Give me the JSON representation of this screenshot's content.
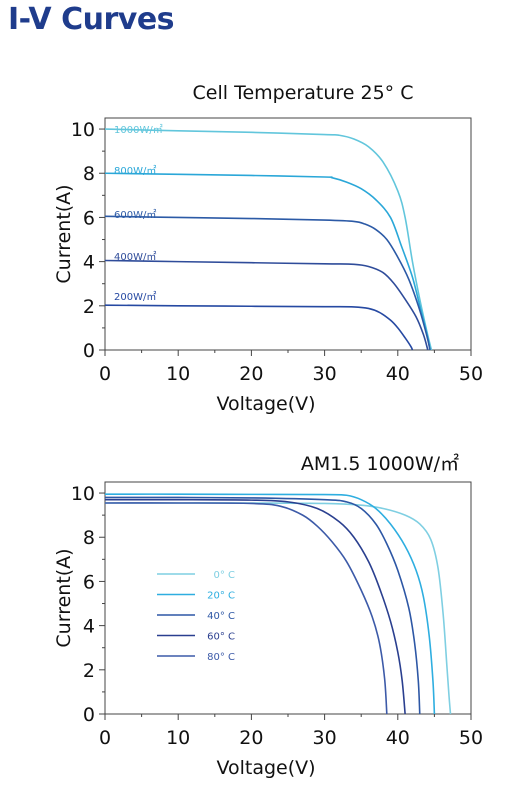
{
  "page": {
    "title": "I-V Curves"
  },
  "chart_data": [
    {
      "type": "line",
      "title": "Cell Temperature 25° C",
      "xlabel": "Voltage(V)",
      "ylabel": "Current(A)",
      "xlim": [
        0,
        50
      ],
      "ylim": [
        0,
        10.5
      ],
      "xticks": [
        0,
        10,
        20,
        30,
        40,
        50
      ],
      "yticks": [
        0,
        2,
        4,
        6,
        8,
        10
      ],
      "grid": false,
      "legend": "inline-labels",
      "series": [
        {
          "name": "1000W/㎡",
          "color": "#62c6dc",
          "points": [
            [
              0,
              10.0
            ],
            [
              10,
              9.92
            ],
            [
              20,
              9.85
            ],
            [
              30,
              9.75
            ],
            [
              32,
              9.72
            ],
            [
              34,
              9.55
            ],
            [
              36,
              9.2
            ],
            [
              38,
              8.5
            ],
            [
              40,
              7.2
            ],
            [
              41,
              6.0
            ],
            [
              42,
              4.0
            ],
            [
              43,
              2.3
            ],
            [
              44,
              0.8
            ],
            [
              44.6,
              0
            ]
          ]
        },
        {
          "name": "800W/㎡",
          "color": "#2aa7d8",
          "points": [
            [
              0,
              8.0
            ],
            [
              10,
              7.95
            ],
            [
              20,
              7.9
            ],
            [
              30,
              7.83
            ],
            [
              31,
              7.8
            ],
            [
              33,
              7.6
            ],
            [
              35,
              7.3
            ],
            [
              37,
              6.8
            ],
            [
              39,
              6.0
            ],
            [
              40.5,
              4.7
            ],
            [
              42,
              3.3
            ],
            [
              43,
              2.0
            ],
            [
              44,
              0.7
            ],
            [
              44.4,
              0
            ]
          ]
        },
        {
          "name": "600W/㎡",
          "color": "#2c5aa6",
          "points": [
            [
              0,
              6.05
            ],
            [
              10,
              6.0
            ],
            [
              20,
              5.95
            ],
            [
              30,
              5.88
            ],
            [
              34,
              5.82
            ],
            [
              35.5,
              5.7
            ],
            [
              37,
              5.45
            ],
            [
              38.5,
              5.0
            ],
            [
              40,
              4.2
            ],
            [
              41.5,
              3.2
            ],
            [
              43,
              1.8
            ],
            [
              44,
              0.6
            ],
            [
              44.4,
              0
            ]
          ]
        },
        {
          "name": "400W/㎡",
          "color": "#2f4c9a",
          "points": [
            [
              0,
              4.05
            ],
            [
              10,
              4.0
            ],
            [
              20,
              3.95
            ],
            [
              30,
              3.9
            ],
            [
              34,
              3.88
            ],
            [
              36,
              3.78
            ],
            [
              38,
              3.5
            ],
            [
              39.5,
              3.0
            ],
            [
              41,
              2.3
            ],
            [
              42.5,
              1.5
            ],
            [
              43.5,
              0.7
            ],
            [
              44.1,
              0
            ]
          ]
        },
        {
          "name": "200W/㎡",
          "color": "#2649a2",
          "points": [
            [
              0,
              2.03
            ],
            [
              10,
              2.0
            ],
            [
              20,
              1.98
            ],
            [
              30,
              1.96
            ],
            [
              34,
              1.95
            ],
            [
              36,
              1.88
            ],
            [
              37.5,
              1.7
            ],
            [
              39,
              1.35
            ],
            [
              40,
              1.0
            ],
            [
              41,
              0.55
            ],
            [
              41.8,
              0.15
            ],
            [
              42,
              0
            ]
          ]
        }
      ]
    },
    {
      "type": "line",
      "title": "AM1.5 1000W/㎡",
      "xlabel": "Voltage(V)",
      "ylabel": "Current(A)",
      "xlim": [
        0,
        50
      ],
      "ylim": [
        0,
        10.5
      ],
      "xticks": [
        0,
        10,
        20,
        30,
        40,
        50
      ],
      "yticks": [
        0,
        2,
        4,
        6,
        8,
        10
      ],
      "grid": false,
      "legend": "left-middle",
      "series": [
        {
          "name": "0° C",
          "color": "#7fcfe2",
          "points": [
            [
              0,
              9.55
            ],
            [
              10,
              9.55
            ],
            [
              20,
              9.55
            ],
            [
              30,
              9.53
            ],
            [
              35,
              9.45
            ],
            [
              38,
              9.3
            ],
            [
              41,
              9.0
            ],
            [
              43,
              8.6
            ],
            [
              44.5,
              7.9
            ],
            [
              45.5,
              6.6
            ],
            [
              46.2,
              4.5
            ],
            [
              46.7,
              2.2
            ],
            [
              47,
              0.8
            ],
            [
              47.2,
              0
            ]
          ]
        },
        {
          "name": "20° C",
          "color": "#2eaee0",
          "points": [
            [
              0,
              9.95
            ],
            [
              10,
              9.95
            ],
            [
              20,
              9.94
            ],
            [
              30,
              9.93
            ],
            [
              33,
              9.9
            ],
            [
              35,
              9.7
            ],
            [
              37,
              9.3
            ],
            [
              39,
              8.6
            ],
            [
              41,
              7.6
            ],
            [
              42.5,
              6.5
            ],
            [
              43.5,
              5.3
            ],
            [
              44.3,
              3.5
            ],
            [
              44.8,
              1.5
            ],
            [
              45,
              0
            ]
          ]
        },
        {
          "name": "40° C",
          "color": "#2d57a5",
          "points": [
            [
              0,
              9.8
            ],
            [
              10,
              9.8
            ],
            [
              20,
              9.78
            ],
            [
              30,
              9.7
            ],
            [
              33,
              9.6
            ],
            [
              35,
              9.3
            ],
            [
              37,
              8.6
            ],
            [
              38.5,
              7.7
            ],
            [
              40,
              6.5
            ],
            [
              41.5,
              4.8
            ],
            [
              42.3,
              3.2
            ],
            [
              42.8,
              1.5
            ],
            [
              43,
              0
            ]
          ]
        },
        {
          "name": "60° C",
          "color": "#2a3f8f",
          "points": [
            [
              0,
              9.7
            ],
            [
              10,
              9.7
            ],
            [
              20,
              9.68
            ],
            [
              25,
              9.6
            ],
            [
              29,
              9.3
            ],
            [
              32,
              8.7
            ],
            [
              34,
              8.0
            ],
            [
              36,
              6.9
            ],
            [
              37.5,
              5.7
            ],
            [
              39,
              4.2
            ],
            [
              40,
              2.8
            ],
            [
              40.6,
              1.5
            ],
            [
              41,
              0
            ]
          ]
        },
        {
          "name": "80° C",
          "color": "#3c5aa8",
          "points": [
            [
              0,
              9.55
            ],
            [
              10,
              9.55
            ],
            [
              20,
              9.53
            ],
            [
              24,
              9.4
            ],
            [
              27,
              9.0
            ],
            [
              29,
              8.5
            ],
            [
              31,
              7.8
            ],
            [
              33,
              6.9
            ],
            [
              35,
              5.6
            ],
            [
              36.5,
              4.4
            ],
            [
              37.5,
              3.2
            ],
            [
              38.2,
              1.6
            ],
            [
              38.5,
              0
            ]
          ]
        }
      ]
    }
  ]
}
